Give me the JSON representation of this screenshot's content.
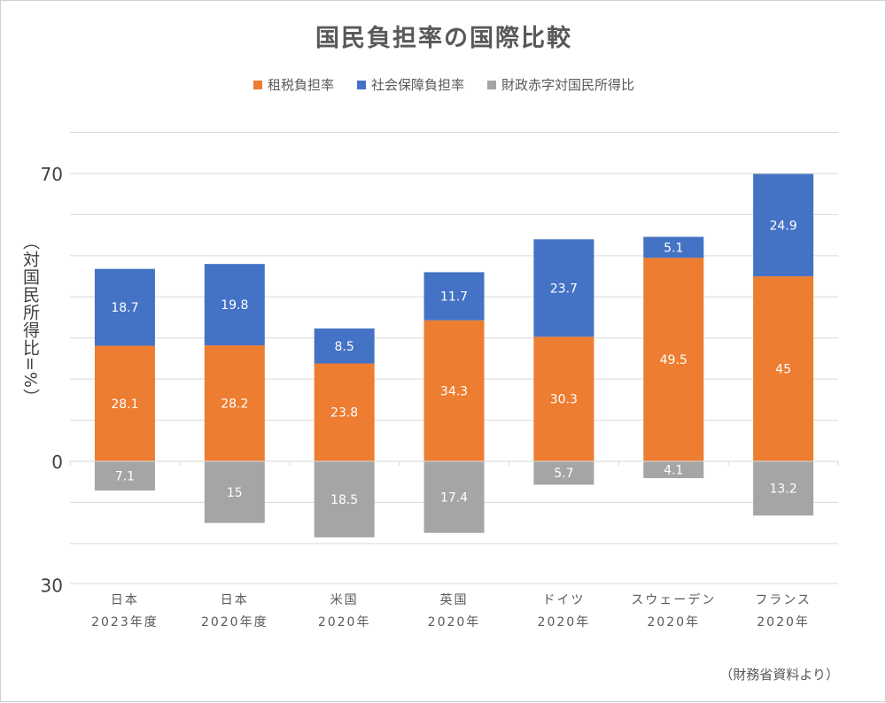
{
  "chart_data": {
    "type": "bar",
    "title": "国民負担率の国際比較",
    "ylabel": "（対国民所得比=%）",
    "source": "（財務省資料より）",
    "categories": [
      {
        "line1": "日本",
        "line2": "2023年度"
      },
      {
        "line1": "日本",
        "line2": "2020年度"
      },
      {
        "line1": "米国",
        "line2": "2020年"
      },
      {
        "line1": "英国",
        "line2": "2020年"
      },
      {
        "line1": "ドイツ",
        "line2": "2020年"
      },
      {
        "line1": "スウェーデン",
        "line2": "2020年"
      },
      {
        "line1": "フランス",
        "line2": "2020年"
      }
    ],
    "series": [
      {
        "name": "租税負担率",
        "color": "#ED7D31",
        "values": [
          28.1,
          28.2,
          23.8,
          34.3,
          30.3,
          49.5,
          45
        ],
        "direction": "up"
      },
      {
        "name": "社会保障負担率",
        "color": "#4472C4",
        "values": [
          18.7,
          19.8,
          8.5,
          11.7,
          23.7,
          5.1,
          24.9
        ],
        "direction": "up"
      },
      {
        "name": "財政赤字対国民所得比",
        "color": "#A5A5A5",
        "values": [
          7.1,
          15,
          18.5,
          17.4,
          5.7,
          4.1,
          13.2
        ],
        "direction": "down"
      }
    ],
    "ylim": [
      -30,
      80
    ],
    "yticks": [
      {
        "value": 70,
        "label": "70"
      },
      {
        "value": 0,
        "label": "0"
      },
      {
        "value": -30,
        "label": "30"
      }
    ],
    "grid": true,
    "legend": "top"
  }
}
